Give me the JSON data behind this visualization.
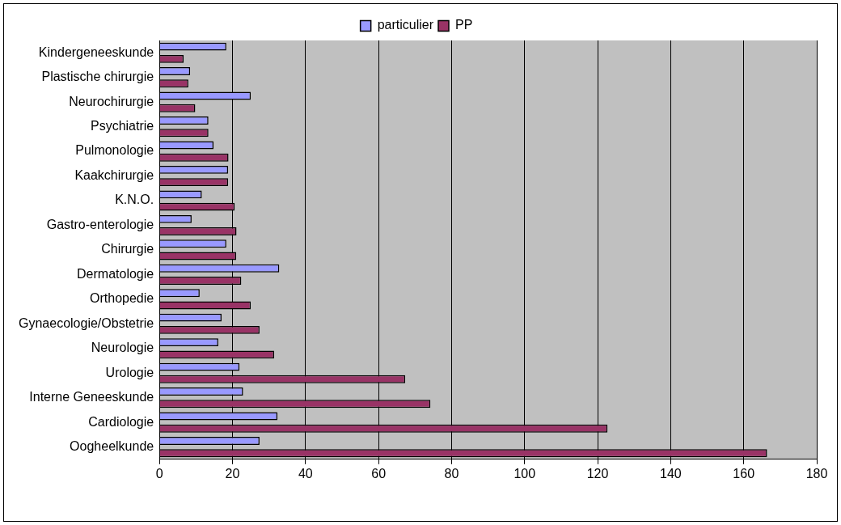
{
  "chart_data": {
    "type": "bar",
    "orientation": "horizontal",
    "categories": [
      "Kindergeneeskunde",
      "Plastische chirurgie",
      "Neurochirurgie",
      "Psychiatrie",
      "Pulmonologie",
      "Kaakchirurgie",
      "K.N.O.",
      "Gastro-enterologie",
      "Chirurgie",
      "Dermatologie",
      "Orthopedie",
      "Gynaecologie/Obstetrie",
      "Neurologie",
      "Urologie",
      "Interne Geneeskunde",
      "Cardiologie",
      "Oogheelkunde"
    ],
    "series": [
      {
        "name": "particulier",
        "color": "#9999ff",
        "values": [
          18.3,
          8.4,
          25,
          13.4,
          14.8,
          18.8,
          11.6,
          8.8,
          18.3,
          32.8,
          11,
          17,
          16.1,
          21.9,
          22.9,
          32.3,
          27.4
        ]
      },
      {
        "name": "PP",
        "color": "#993366",
        "values": [
          6.6,
          7.9,
          9.8,
          13.4,
          18.9,
          18.8,
          20.6,
          21.1,
          21,
          22.4,
          25,
          27.4,
          31.4,
          67.3,
          74.2,
          122.7,
          166.4
        ]
      }
    ],
    "xlim": [
      0,
      180
    ],
    "xticks": [
      0,
      20,
      40,
      60,
      80,
      100,
      120,
      140,
      160,
      180
    ],
    "grid": "x",
    "legend": "top"
  }
}
